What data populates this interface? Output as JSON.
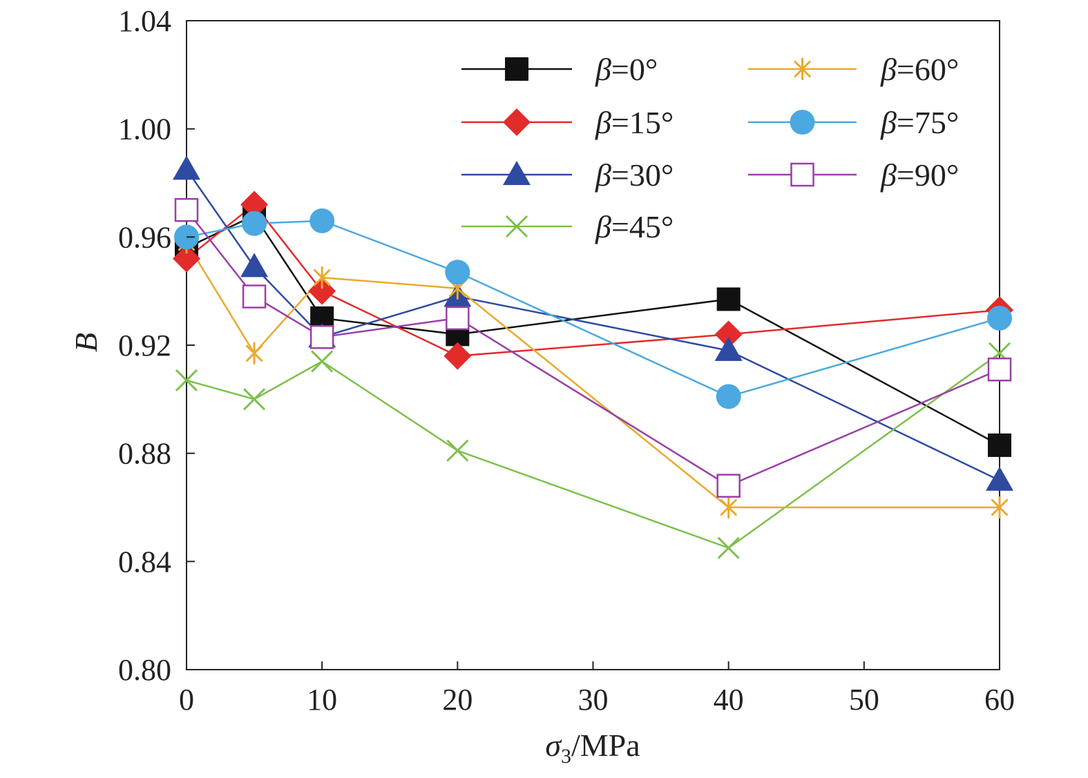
{
  "chart_data": {
    "type": "line",
    "title": "",
    "xlabel": {
      "symbol": "σ",
      "subscript": "3",
      "unit": "/MPa"
    },
    "ylabel": "B",
    "xlim": [
      0,
      60
    ],
    "ylim": [
      0.8,
      1.04
    ],
    "xticks": [
      "0",
      "10",
      "20",
      "30",
      "40",
      "50",
      "60"
    ],
    "yticks": [
      "0.80",
      "0.84",
      "0.88",
      "0.92",
      "0.96",
      "1.00",
      "1.04"
    ],
    "grid": false,
    "legend_placement": "top-right",
    "x": [
      0,
      5,
      10,
      20,
      40,
      60
    ],
    "series": [
      {
        "name": "β=0°",
        "symbol": "β",
        "value": "=0°",
        "color": "#111111",
        "marker": "square-filled",
        "values": [
          0.956,
          0.968,
          0.93,
          0.924,
          0.937,
          0.883
        ]
      },
      {
        "name": "β=15°",
        "symbol": "β",
        "value": "=15°",
        "color": "#e32b2b",
        "marker": "diamond-filled",
        "values": [
          0.952,
          0.972,
          0.94,
          0.916,
          0.924,
          0.933
        ]
      },
      {
        "name": "β=30°",
        "symbol": "β",
        "value": "=30°",
        "color": "#2e4aa1",
        "marker": "triangle-filled",
        "values": [
          0.985,
          0.949,
          0.923,
          0.938,
          0.918,
          0.87
        ]
      },
      {
        "name": "β=45°",
        "symbol": "β",
        "value": "=45°",
        "color": "#7cc04a",
        "marker": "x",
        "values": [
          0.907,
          0.9,
          0.914,
          0.881,
          0.845,
          0.917
        ]
      },
      {
        "name": "β=60°",
        "symbol": "β",
        "value": "=60°",
        "color": "#eaa92c",
        "marker": "asterisk",
        "values": [
          0.958,
          0.917,
          0.945,
          0.941,
          0.86,
          0.86
        ]
      },
      {
        "name": "β=75°",
        "symbol": "β",
        "value": "=75°",
        "color": "#4ba8e0",
        "marker": "circle-filled",
        "values": [
          0.96,
          0.965,
          0.966,
          0.947,
          0.901,
          0.93
        ]
      },
      {
        "name": "β=90°",
        "symbol": "β",
        "value": "=90°",
        "color": "#9a3fa6",
        "marker": "square-open",
        "values": [
          0.97,
          0.938,
          0.923,
          0.93,
          0.868,
          0.911
        ]
      }
    ]
  }
}
